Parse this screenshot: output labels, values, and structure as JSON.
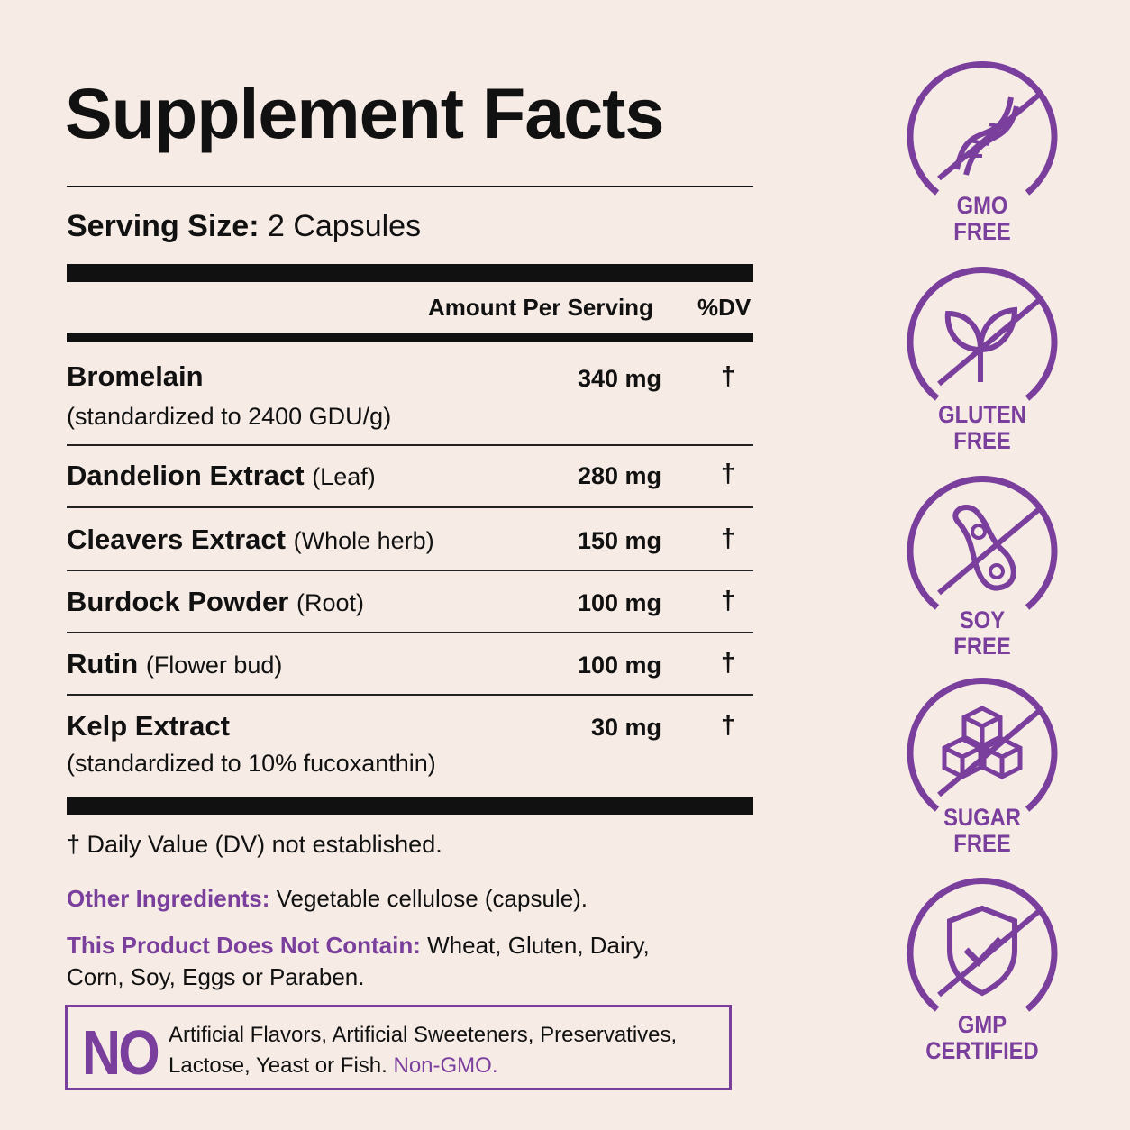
{
  "title": "Supplement Facts",
  "serving": {
    "label": "Serving Size:",
    "value": "2 Capsules"
  },
  "columns": {
    "amount": "Amount Per Serving",
    "dv": "%DV"
  },
  "ingredients": [
    {
      "name": "Bromelain",
      "part": "",
      "sub": "(standardized to 2400 GDU/g)",
      "amount": "340 mg",
      "dv": "†"
    },
    {
      "name": "Dandelion Extract",
      "part": "(Leaf)",
      "sub": "",
      "amount": "280 mg",
      "dv": "†"
    },
    {
      "name": "Cleavers Extract",
      "part": "(Whole herb)",
      "sub": "",
      "amount": "150 mg",
      "dv": "†"
    },
    {
      "name": "Burdock Powder",
      "part": "(Root)",
      "sub": "",
      "amount": "100 mg",
      "dv": "†"
    },
    {
      "name": "Rutin",
      "part": "(Flower bud)",
      "sub": "",
      "amount": "100 mg",
      "dv": "†"
    },
    {
      "name": "Kelp Extract",
      "part": "",
      "sub": "(standardized to 10% fucoxanthin)",
      "amount": "30 mg",
      "dv": "†"
    }
  ],
  "footnote": "† Daily Value (DV) not established.",
  "other_ingredients": {
    "label": "Other Ingredients:",
    "text": "Vegetable cellulose (capsule)."
  },
  "does_not_contain": {
    "label": "This Product Does Not Contain:",
    "text": "Wheat, Gluten, Dairy, Corn, Soy, Eggs or Paraben."
  },
  "no_box": {
    "no": "NO",
    "text": "Artificial Flavors, Artificial Sweeteners, Preservatives, Lactose, Yeast or Fish.",
    "highlight": "Non-GMO."
  },
  "badges": [
    {
      "icon": "dna-icon",
      "line1": "GMO",
      "line2": "FREE"
    },
    {
      "icon": "leaf-icon",
      "line1": "GLUTEN",
      "line2": "FREE"
    },
    {
      "icon": "soybean-icon",
      "line1": "SOY",
      "line2": "FREE"
    },
    {
      "icon": "sugar-cubes-icon",
      "line1": "SUGAR",
      "line2": "FREE"
    },
    {
      "icon": "shield-check-icon",
      "line1": "GMP",
      "line2": "CERTIFIED"
    }
  ],
  "colors": {
    "accent": "#7a3e9d",
    "background": "#f6ebe5",
    "text": "#111111"
  }
}
